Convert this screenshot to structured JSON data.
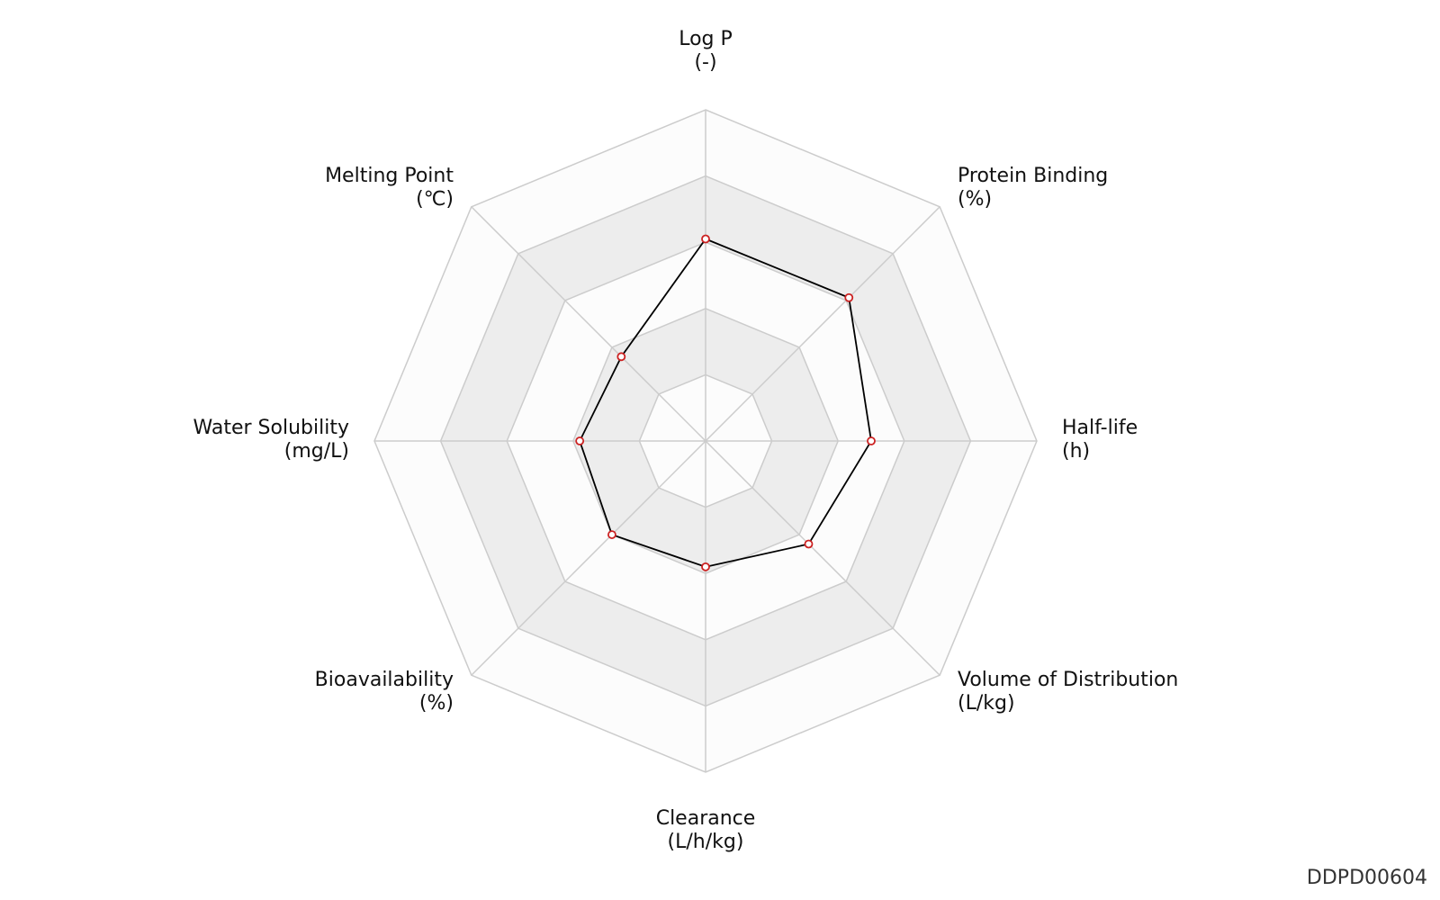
{
  "chart_data": {
    "type": "radar",
    "axes": [
      {
        "name": "Log P",
        "unit": "(-)"
      },
      {
        "name": "Protein Binding",
        "unit": "(%)"
      },
      {
        "name": "Half-life",
        "unit": "(h)"
      },
      {
        "name": "Volume of Distribution",
        "unit": "(L/kg)"
      },
      {
        "name": "Clearance",
        "unit": "(L/h/kg)"
      },
      {
        "name": "Bioavailability",
        "unit": "(%)"
      },
      {
        "name": "Water Solubility",
        "unit": "(mg/L)"
      },
      {
        "name": "Melting Point",
        "unit": "(℃)"
      }
    ],
    "rlim": [
      0,
      5
    ],
    "rings": 5,
    "grid": true,
    "values": [
      3.05,
      3.06,
      2.5,
      2.2,
      1.9,
      2.0,
      1.9,
      1.8
    ],
    "colors": {
      "line": "#000000",
      "marker_edge": "#cc2222",
      "marker_fill": "#ffffff",
      "grid": "#cccccc",
      "band_dark": "#ededed",
      "band_light": "#fcfcfc"
    }
  },
  "watermark": "DDPD00604"
}
